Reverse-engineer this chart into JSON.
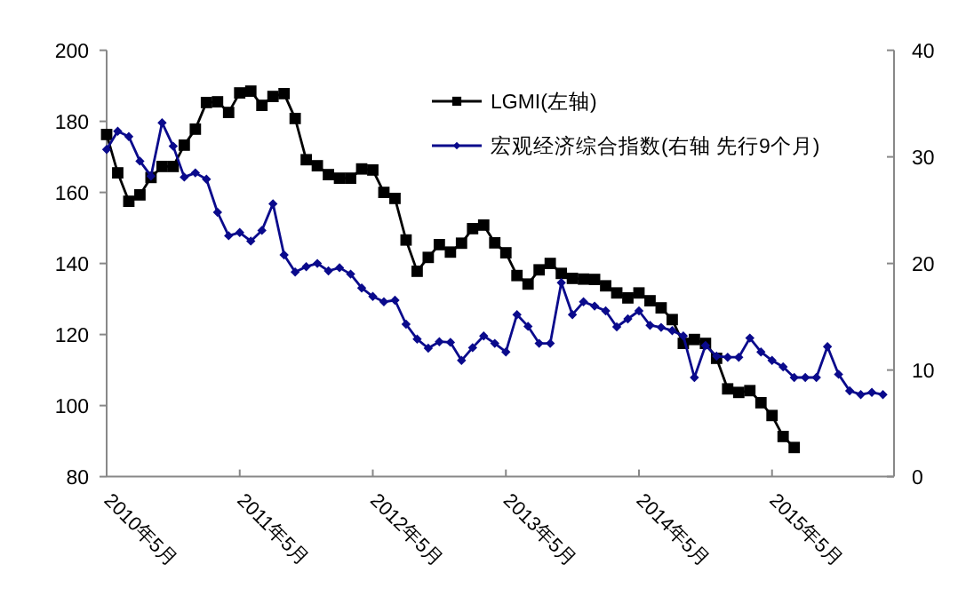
{
  "chart_data": {
    "type": "line",
    "xlim": [
      "2010-05",
      "2016-04"
    ],
    "xticks": [
      {
        "value": "2010-05",
        "label": "2010年5月"
      },
      {
        "value": "2011-05",
        "label": "2011年5月"
      },
      {
        "value": "2012-05",
        "label": "2012年5月"
      },
      {
        "value": "2013-05",
        "label": "2013年5月"
      },
      {
        "value": "2014-05",
        "label": "2014年5月"
      },
      {
        "value": "2015-05",
        "label": "2015年5月"
      }
    ],
    "ylim": [
      80,
      200
    ],
    "yticks": [
      80,
      100,
      120,
      140,
      160,
      180,
      200
    ],
    "y2lim": [
      0,
      40
    ],
    "y2ticks": [
      0,
      10,
      20,
      30,
      40
    ],
    "legend": "top right",
    "series": [
      {
        "name": "LGMI(左轴)",
        "color": "#000000",
        "marker": "square",
        "x": [
          "2010-05",
          "2010-06",
          "2010-07",
          "2010-08",
          "2010-09",
          "2010-10",
          "2010-11",
          "2010-12",
          "2011-01",
          "2011-02",
          "2011-03",
          "2011-04",
          "2011-05",
          "2011-06",
          "2011-07",
          "2011-08",
          "2011-09",
          "2011-10",
          "2011-11",
          "2011-12",
          "2012-01",
          "2012-02",
          "2012-03",
          "2012-04",
          "2012-05",
          "2012-06",
          "2012-07",
          "2012-08",
          "2012-09",
          "2012-10",
          "2012-11",
          "2012-12",
          "2013-01",
          "2013-02",
          "2013-03",
          "2013-04",
          "2013-05",
          "2013-06",
          "2013-07",
          "2013-08",
          "2013-09",
          "2013-10",
          "2013-11",
          "2013-12",
          "2014-01",
          "2014-02",
          "2014-03",
          "2014-04",
          "2014-05",
          "2014-06",
          "2014-07",
          "2014-08",
          "2014-09",
          "2014-10",
          "2014-11",
          "2014-12",
          "2015-01",
          "2015-02",
          "2015-03",
          "2015-04",
          "2015-05",
          "2015-06",
          "2015-07"
        ],
        "values": [
          176.3,
          165.5,
          157.5,
          159.3,
          164.2,
          167.3,
          167.3,
          173.3,
          177.8,
          185.3,
          185.5,
          182.5,
          188,
          188.5,
          184.5,
          187,
          187.8,
          180.8,
          169.2,
          167.5,
          165,
          164,
          164,
          166.6,
          166.3,
          160,
          158.3,
          146.6,
          137.8,
          141.7,
          145.3,
          143.2,
          145.7,
          149.8,
          150.8,
          145.8,
          143,
          136.6,
          134.2,
          138.2,
          140,
          137.2,
          135.8,
          135.6,
          135.5,
          133.7,
          131.7,
          130.3,
          131.7,
          129.5,
          127.5,
          124.2,
          117.5,
          118.6,
          117.5,
          113.3,
          104.7,
          103.7,
          104.2,
          100.8,
          97.2,
          91.3,
          88.2
        ]
      },
      {
        "name": "宏观经济综合指数(右轴 先行9个月)",
        "color": "#0a0a8c",
        "marker": "diamond",
        "axis": "y2",
        "x": [
          "2010-05",
          "2010-06",
          "2010-07",
          "2010-08",
          "2010-09",
          "2010-10",
          "2010-11",
          "2010-12",
          "2011-01",
          "2011-02",
          "2011-03",
          "2011-04",
          "2011-05",
          "2011-06",
          "2011-07",
          "2011-08",
          "2011-09",
          "2011-10",
          "2011-11",
          "2011-12",
          "2012-01",
          "2012-02",
          "2012-03",
          "2012-04",
          "2012-05",
          "2012-06",
          "2012-07",
          "2012-08",
          "2012-09",
          "2012-10",
          "2012-11",
          "2012-12",
          "2013-01",
          "2013-02",
          "2013-03",
          "2013-04",
          "2013-05",
          "2013-06",
          "2013-07",
          "2013-08",
          "2013-09",
          "2013-10",
          "2013-11",
          "2013-12",
          "2014-01",
          "2014-02",
          "2014-03",
          "2014-04",
          "2014-05",
          "2014-06",
          "2014-07",
          "2014-08",
          "2014-09",
          "2014-10",
          "2014-11",
          "2014-12",
          "2015-01",
          "2015-02",
          "2015-03",
          "2015-04",
          "2015-05",
          "2015-06",
          "2015-07",
          "2015-08",
          "2015-09",
          "2015-10",
          "2015-11",
          "2015-12",
          "2016-01",
          "2016-02",
          "2016-03"
        ],
        "values": [
          30.7,
          32.4,
          31.9,
          29.6,
          28.2,
          33.2,
          31,
          28.1,
          28.5,
          27.9,
          24.8,
          22.6,
          22.9,
          22.1,
          23.1,
          25.6,
          20.8,
          19.2,
          19.7,
          20,
          19.3,
          19.6,
          19,
          17.7,
          16.9,
          16.4,
          16.55,
          14.3,
          12.9,
          12.05,
          12.66,
          12.6,
          10.9,
          12.1,
          13.2,
          12.5,
          11.7,
          15.2,
          14.1,
          12.5,
          12.5,
          18.2,
          15.2,
          16.4,
          16,
          15.55,
          14.05,
          14.8,
          15.55,
          14.2,
          14,
          13.7,
          13.2,
          9.3,
          12.3,
          11.3,
          11.2,
          11.2,
          13,
          11.7,
          10.9,
          10.3,
          9.3,
          9.3,
          9.3,
          12.2,
          9.6,
          8.05,
          7.7,
          7.9,
          7.7
        ]
      }
    ]
  }
}
